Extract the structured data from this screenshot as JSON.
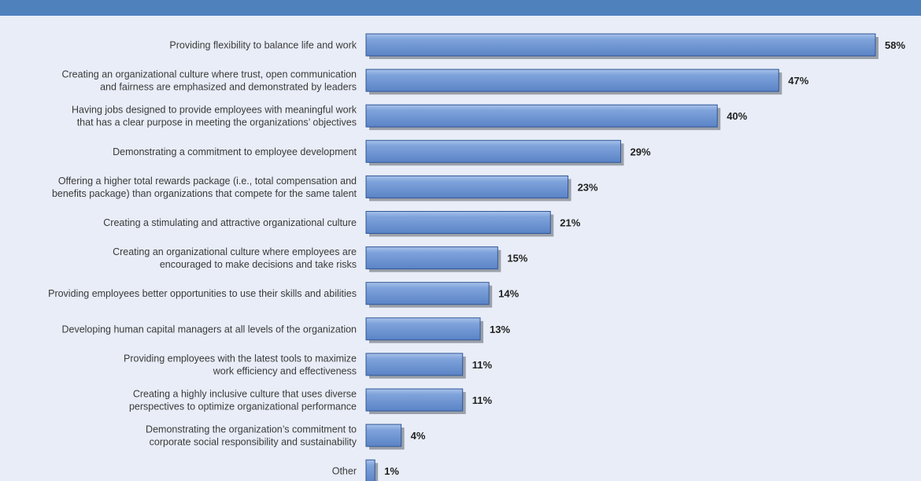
{
  "chart_data": {
    "type": "bar",
    "orientation": "horizontal",
    "categories": [
      [
        "Providing flexibility to balance life and work"
      ],
      [
        "Creating an organizational culture where trust, open communication",
        "and fairness are emphasized and demonstrated by leaders"
      ],
      [
        "Having jobs designed to provide employees with meaningful work",
        "that has a clear purpose in meeting the organizations’ objectives"
      ],
      [
        "Demonstrating a commitment to employee development"
      ],
      [
        "Offering a higher total rewards package (i.e., total compensation and",
        "benefits package) than organizations that compete for the same talent"
      ],
      [
        "Creating a stimulating and attractive organizational culture"
      ],
      [
        "Creating an organizational culture where employees are",
        "encouraged to make decisions and take risks"
      ],
      [
        "Providing employees better opportunities to use their skills and abilities"
      ],
      [
        "Developing human capital managers at all levels of the organization"
      ],
      [
        "Providing employees with the latest tools to maximize",
        "work efficiency and effectiveness"
      ],
      [
        "Creating a highly inclusive culture that uses diverse",
        "perspectives to optimize organizational performance"
      ],
      [
        "Demonstrating the organization’s commitment to",
        "corporate social responsibility and sustainability"
      ],
      [
        "Other"
      ]
    ],
    "values": [
      58,
      47,
      40,
      29,
      23,
      21,
      15,
      14,
      13,
      11,
      11,
      4,
      1
    ],
    "value_labels": [
      "58%",
      "47%",
      "40%",
      "29%",
      "23%",
      "21%",
      "15%",
      "14%",
      "13%",
      "11%",
      "11%",
      "4%",
      "1%"
    ],
    "xlim": [
      0,
      58
    ],
    "grid": false,
    "legend": "none",
    "colors": {
      "bar": "#6f95d2",
      "bar_highlight": "#9fbbe6",
      "bar_border": "#2f5597",
      "shadow": "#9aa0aa",
      "background": "#e8edf7",
      "header_band": "#4f81bd"
    }
  }
}
